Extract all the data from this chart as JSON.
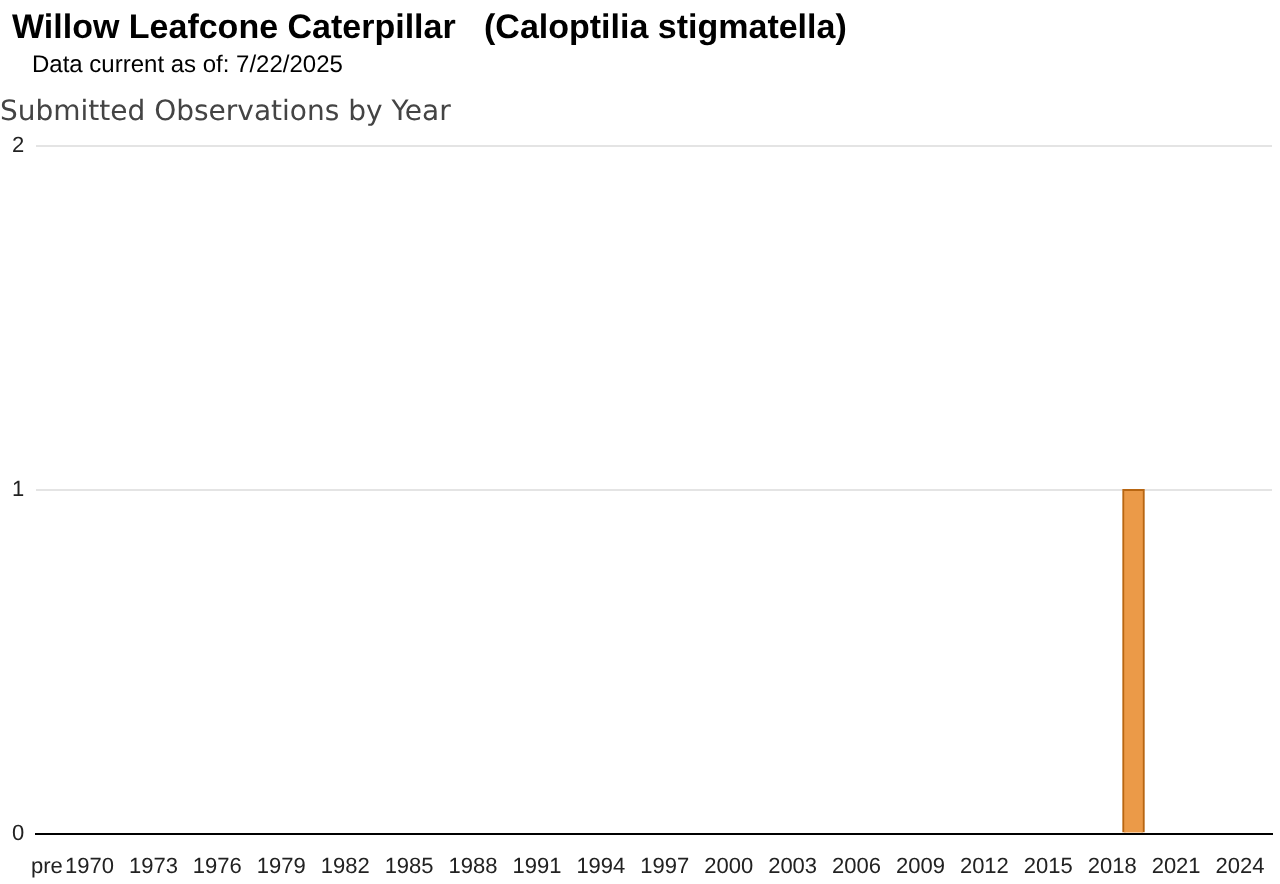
{
  "chart_data": {
    "type": "bar",
    "title": "Willow Leafcone Caterpillar   (Caloptilia stigmatella)",
    "subtitle": "Data current as of: 7/22/2025",
    "annotations": [
      "Submitted Observations by Year"
    ],
    "categories": [
      "pre",
      null,
      "1970",
      null,
      null,
      "1973",
      null,
      null,
      "1976",
      null,
      null,
      "1979",
      null,
      null,
      "1982",
      null,
      null,
      "1985",
      null,
      null,
      "1988",
      null,
      null,
      "1991",
      null,
      null,
      "1994",
      null,
      null,
      "1997",
      null,
      null,
      "2000",
      null,
      null,
      "2003",
      null,
      null,
      "2006",
      null,
      null,
      "2009",
      null,
      null,
      "2012",
      null,
      null,
      "2015",
      null,
      null,
      "2018",
      null,
      null,
      "2021",
      null,
      null,
      "2024",
      null
    ],
    "values": [
      0,
      0,
      0,
      0,
      0,
      0,
      0,
      0,
      0,
      0,
      0,
      0,
      0,
      0,
      0,
      0,
      0,
      0,
      0,
      0,
      0,
      0,
      0,
      0,
      0,
      0,
      0,
      0,
      0,
      0,
      0,
      0,
      0,
      0,
      0,
      0,
      0,
      0,
      0,
      0,
      0,
      0,
      0,
      0,
      0,
      0,
      0,
      0,
      0,
      0,
      0,
      1,
      0,
      0,
      0,
      0,
      0,
      0
    ],
    "color": "#eb9a48",
    "ylim": [
      0,
      2
    ],
    "yticks": [
      0,
      1,
      2
    ],
    "grid": "y"
  }
}
